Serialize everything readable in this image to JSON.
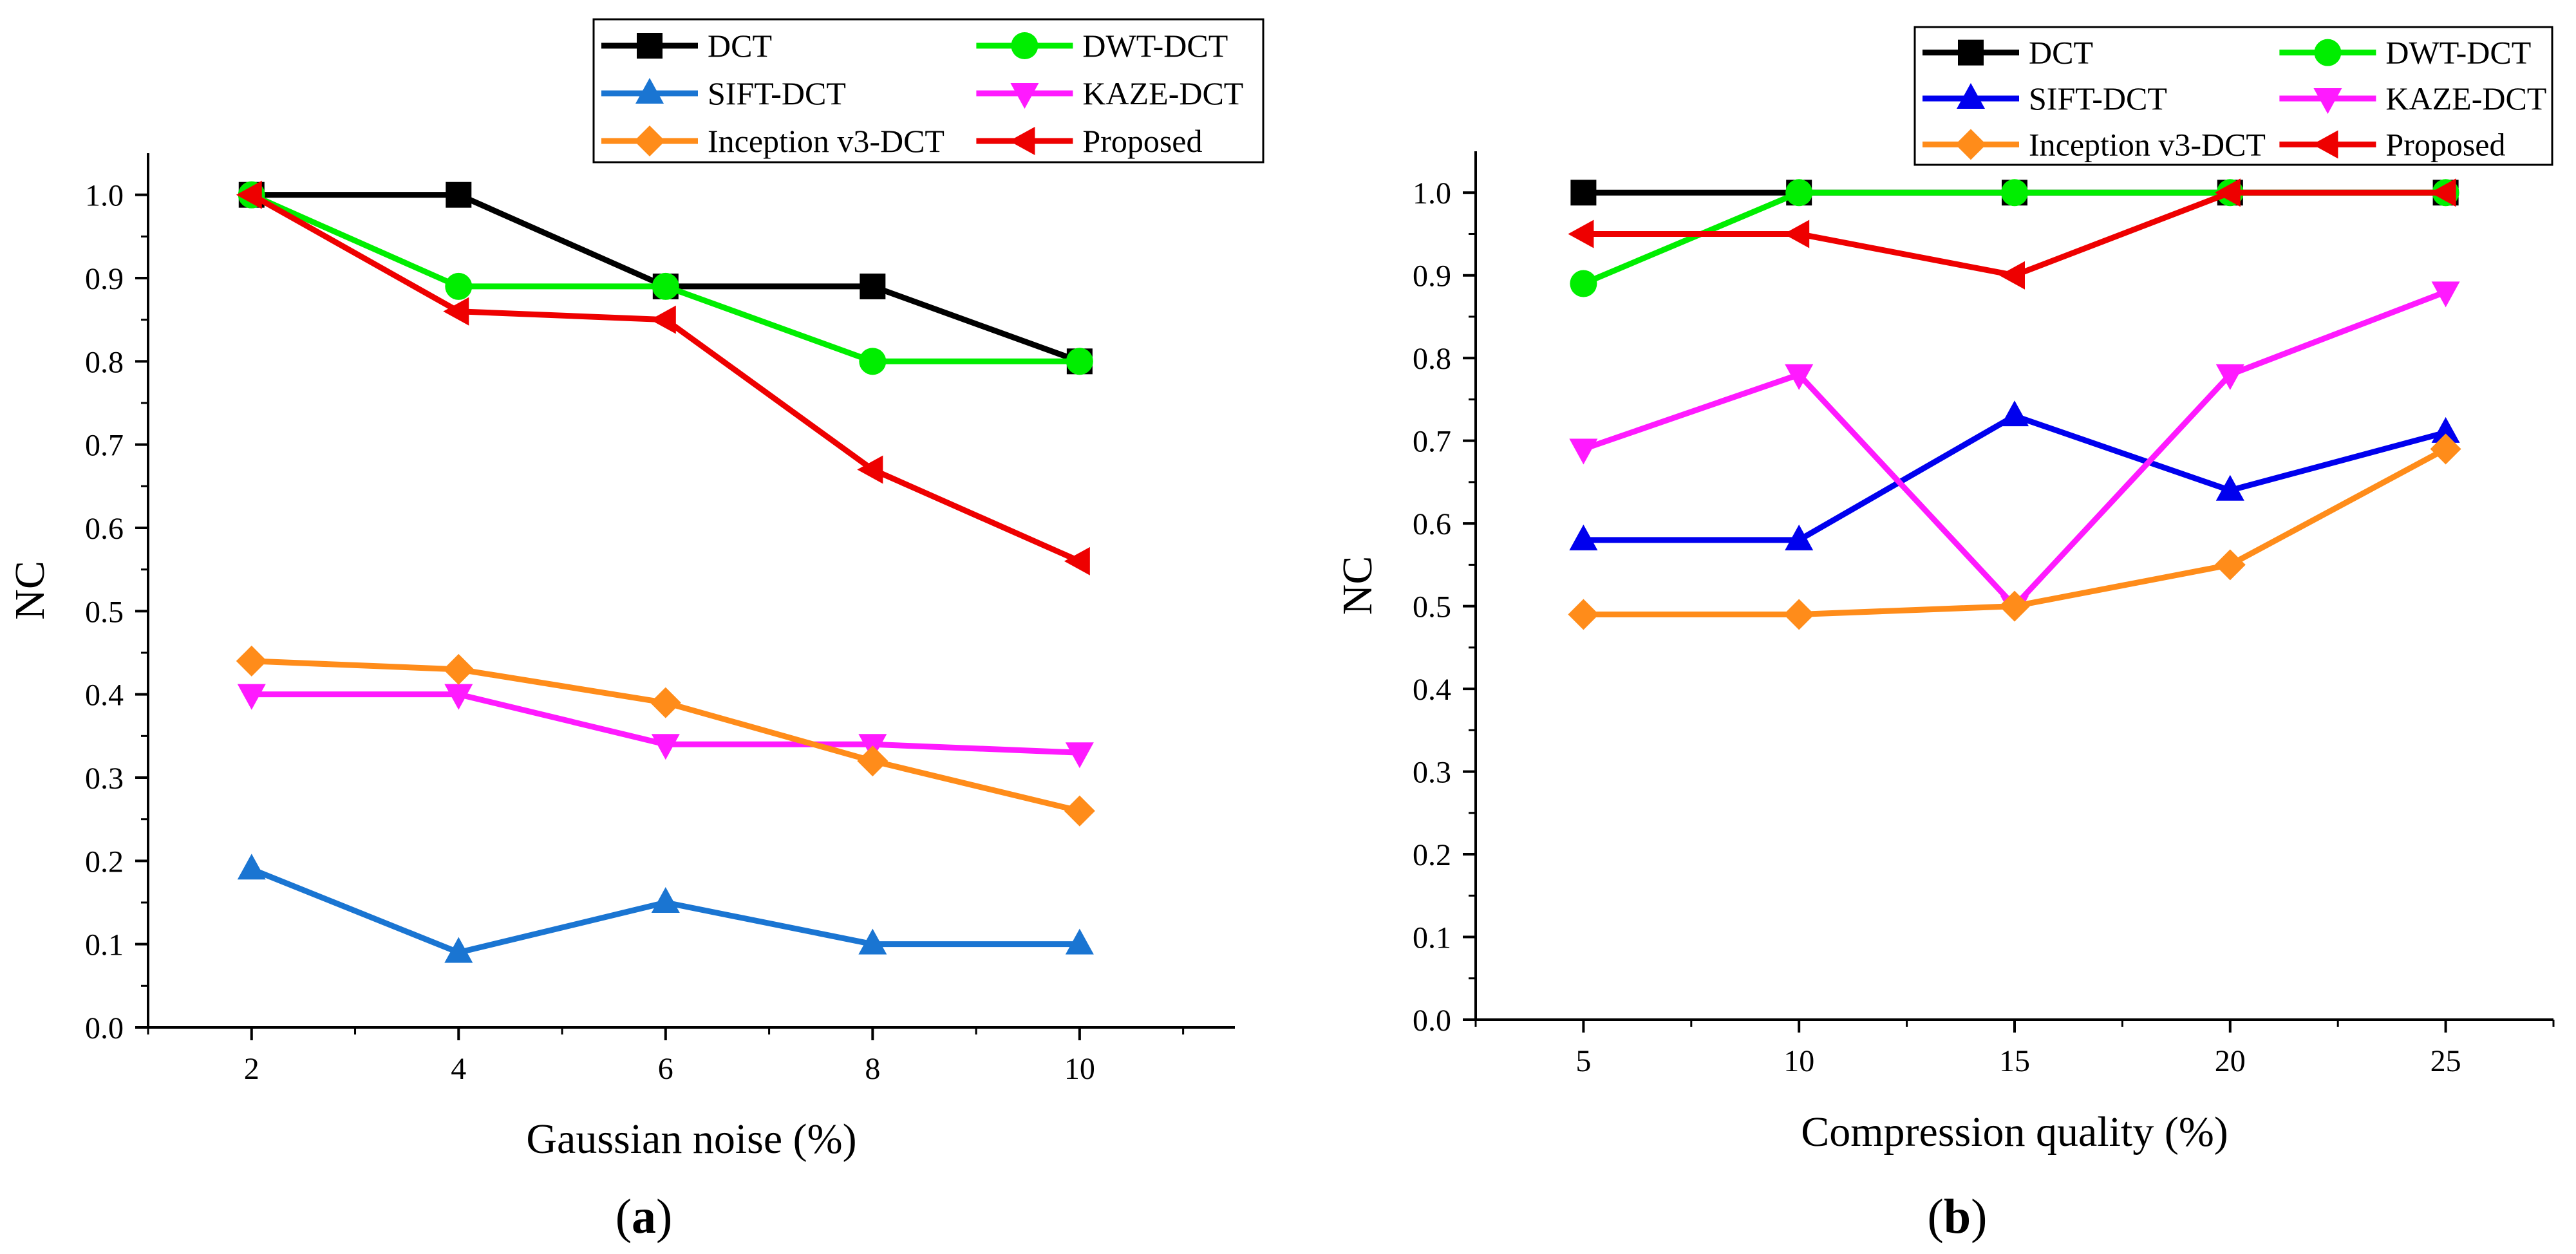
{
  "figure": {
    "panels": [
      {
        "label_open": "(",
        "label_letter": "a",
        "label_close": ")"
      },
      {
        "label_open": "(",
        "label_letter": "b",
        "label_close": ")"
      }
    ]
  },
  "chart_data": [
    {
      "type": "line",
      "panel": "a",
      "title": "",
      "xlabel": "Gaussian noise (%)",
      "ylabel": "NC",
      "x": [
        2,
        4,
        6,
        8,
        10
      ],
      "xlim": [
        1,
        11.5
      ],
      "ylim": [
        0,
        1.05
      ],
      "xticks": [
        2,
        4,
        6,
        8,
        10
      ],
      "yticks": [
        "0.0",
        "0.1",
        "0.2",
        "0.3",
        "0.4",
        "0.5",
        "0.6",
        "0.7",
        "0.8",
        "0.9",
        "1.0"
      ],
      "legend_position": "top-right-above-axes",
      "series": [
        {
          "name": "DCT",
          "color": "#000000",
          "marker": "square",
          "values": [
            1.0,
            1.0,
            0.89,
            0.89,
            0.8
          ]
        },
        {
          "name": "DWT-DCT",
          "color": "#00ee00",
          "marker": "circle",
          "values": [
            1.0,
            0.89,
            0.89,
            0.8,
            0.8
          ]
        },
        {
          "name": "SIFT-DCT",
          "color": "#1a75d2",
          "marker": "triangle-up",
          "values": [
            0.19,
            0.09,
            0.15,
            0.1,
            0.1
          ]
        },
        {
          "name": "KAZE-DCT",
          "color": "#ff1aff",
          "marker": "triangle-down",
          "values": [
            0.4,
            0.4,
            0.34,
            0.34,
            0.33
          ]
        },
        {
          "name": "Inception v3-DCT",
          "color": "#ff8c1a",
          "marker": "diamond",
          "values": [
            0.44,
            0.43,
            0.39,
            0.32,
            0.26
          ]
        },
        {
          "name": "Proposed",
          "color": "#ee0000",
          "marker": "triangle-left",
          "values": [
            1.0,
            0.86,
            0.85,
            0.67,
            0.56
          ]
        }
      ]
    },
    {
      "type": "line",
      "panel": "b",
      "title": "",
      "xlabel": "Compression quality (%)",
      "ylabel": "NC",
      "x": [
        5,
        10,
        15,
        20,
        25
      ],
      "xlim": [
        2.5,
        27.5
      ],
      "ylim": [
        0,
        1.05
      ],
      "xticks": [
        5,
        10,
        15,
        20,
        25
      ],
      "yticks": [
        "0.0",
        "0.1",
        "0.2",
        "0.3",
        "0.4",
        "0.5",
        "0.6",
        "0.7",
        "0.8",
        "0.9",
        "1.0"
      ],
      "legend_position": "top-right-above-axes",
      "series": [
        {
          "name": "DCT",
          "color": "#000000",
          "marker": "square",
          "values": [
            1.0,
            1.0,
            1.0,
            1.0,
            1.0
          ]
        },
        {
          "name": "DWT-DCT",
          "color": "#00ee00",
          "marker": "circle",
          "values": [
            0.89,
            1.0,
            1.0,
            1.0,
            1.0
          ]
        },
        {
          "name": "SIFT-DCT",
          "color": "#0000ee",
          "marker": "triangle-up",
          "values": [
            0.58,
            0.58,
            0.73,
            0.64,
            0.71
          ]
        },
        {
          "name": "KAZE-DCT",
          "color": "#ff1aff",
          "marker": "triangle-down",
          "values": [
            0.69,
            0.78,
            0.5,
            0.78,
            0.88
          ]
        },
        {
          "name": "Inception v3-DCT",
          "color": "#ff8c1a",
          "marker": "diamond",
          "values": [
            0.49,
            0.49,
            0.5,
            0.55,
            0.69
          ]
        },
        {
          "name": "Proposed",
          "color": "#ee0000",
          "marker": "triangle-left",
          "values": [
            0.95,
            0.95,
            0.9,
            1.0,
            1.0
          ]
        }
      ]
    }
  ]
}
